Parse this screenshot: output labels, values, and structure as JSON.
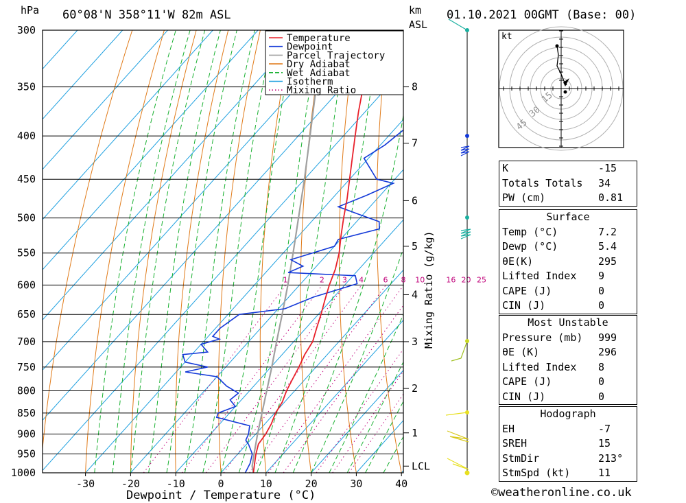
{
  "header": {
    "location": "60°08'N  358°11'W  82m  ASL",
    "datetime": "01.10.2021  00GMT  (Base: 00)",
    "hpa_label": "hPa",
    "km_label": "km",
    "asl_label": "ASL"
  },
  "chart_data": {
    "type": "skew-t",
    "xlabel": "Dewpoint / Temperature (°C)",
    "right_label": "Mixing Ratio (g/kg)",
    "pressure_ticks": [
      300,
      350,
      400,
      450,
      500,
      550,
      600,
      650,
      700,
      750,
      800,
      850,
      900,
      950,
      1000
    ],
    "temp_ticks": [
      -30,
      -20,
      -10,
      0,
      10,
      20,
      30,
      40
    ],
    "xlim": [
      -40,
      40
    ],
    "ylim_hpa": [
      1000,
      300
    ],
    "height_ticks": [
      {
        "label": "8",
        "p": 350
      },
      {
        "label": "7",
        "p": 408
      },
      {
        "label": "6",
        "p": 477
      },
      {
        "label": "5",
        "p": 540
      },
      {
        "label": "4",
        "p": 616
      },
      {
        "label": "3",
        "p": 700
      },
      {
        "label": "2",
        "p": 795
      },
      {
        "label": "1",
        "p": 897
      },
      {
        "label": "LCL",
        "p": 982
      }
    ],
    "mixing_ratio_labels": [
      "1",
      "2",
      "3",
      "4",
      "6",
      "8",
      "10",
      "16",
      "20",
      "25"
    ],
    "mixing_ratio_values": [
      1,
      2,
      3,
      4,
      6,
      8,
      10,
      16,
      20,
      25
    ],
    "legend": [
      {
        "name": "Temperature",
        "color": "#e8202a",
        "style": "solid"
      },
      {
        "name": "Dewpoint",
        "color": "#1238d8",
        "style": "solid"
      },
      {
        "name": "Parcel Trajectory",
        "color": "#a0a0a0",
        "style": "solid"
      },
      {
        "name": "Dry Adiabat",
        "color": "#e07a18",
        "style": "solid"
      },
      {
        "name": "Wet Adiabat",
        "color": "#18b030",
        "style": "dashed"
      },
      {
        "name": "Isotherm",
        "color": "#1ea0e0",
        "style": "solid"
      },
      {
        "name": "Mixing Ratio",
        "color": "#c0007a",
        "style": "dotted"
      }
    ],
    "series": [
      {
        "name": "Temperature",
        "points": [
          [
            1000,
            7.2
          ],
          [
            975,
            5.6
          ],
          [
            950,
            4.0
          ],
          [
            925,
            2.6
          ],
          [
            900,
            2.2
          ],
          [
            875,
            1.4
          ],
          [
            850,
            0.2
          ],
          [
            825,
            -0.5
          ],
          [
            800,
            -1.8
          ],
          [
            775,
            -2.8
          ],
          [
            750,
            -3.8
          ],
          [
            725,
            -5.0
          ],
          [
            700,
            -5.8
          ],
          [
            675,
            -7.6
          ],
          [
            650,
            -9.4
          ],
          [
            625,
            -11.4
          ],
          [
            600,
            -13.4
          ],
          [
            575,
            -15.2
          ],
          [
            550,
            -17.6
          ],
          [
            525,
            -20.6
          ],
          [
            500,
            -23.6
          ],
          [
            475,
            -26.6
          ],
          [
            450,
            -30.0
          ],
          [
            425,
            -33.6
          ],
          [
            400,
            -37.4
          ],
          [
            375,
            -41.4
          ],
          [
            350,
            -45.4
          ],
          [
            325,
            -49.6
          ],
          [
            300,
            -54.0
          ]
        ]
      },
      {
        "name": "Dewpoint",
        "points": [
          [
            1000,
            5.4
          ],
          [
            975,
            4.6
          ],
          [
            950,
            3.2
          ],
          [
            925,
            0.4
          ],
          [
            915,
            -1.0
          ],
          [
            900,
            -1.6
          ],
          [
            880,
            -3.0
          ],
          [
            860,
            -12.0
          ],
          [
            850,
            -12.5
          ],
          [
            835,
            -10.0
          ],
          [
            820,
            -12.5
          ],
          [
            805,
            -12.0
          ],
          [
            790,
            -16.0
          ],
          [
            770,
            -20.0
          ],
          [
            760,
            -28.0
          ],
          [
            750,
            -24.0
          ],
          [
            740,
            -30.0
          ],
          [
            725,
            -32.0
          ],
          [
            720,
            -27.0
          ],
          [
            705,
            -30.0
          ],
          [
            695,
            -27.0
          ],
          [
            690,
            -29.0
          ],
          [
            675,
            -29.0
          ],
          [
            650,
            -27.5
          ],
          [
            640,
            -18.5
          ],
          [
            620,
            -14.5
          ],
          [
            598,
            -7.5
          ],
          [
            585,
            -9.5
          ],
          [
            580,
            -25.0
          ],
          [
            570,
            -23.0
          ],
          [
            560,
            -27.0
          ],
          [
            540,
            -20.0
          ],
          [
            530,
            -20.5
          ],
          [
            515,
            -13.5
          ],
          [
            505,
            -15.0
          ],
          [
            495,
            -21.0
          ],
          [
            485,
            -27.0
          ],
          [
            470,
            -23.0
          ],
          [
            455,
            -19.5
          ],
          [
            450,
            -24.0
          ],
          [
            425,
            -31.0
          ],
          [
            410,
            -29.0
          ],
          [
            395,
            -28.0
          ],
          [
            385,
            -27.0
          ],
          [
            370,
            -31.0
          ],
          [
            355,
            -33.0
          ],
          [
            345,
            -34.0
          ],
          [
            330,
            -40.0
          ],
          [
            320,
            -40.0
          ],
          [
            310,
            -40.0
          ],
          [
            305,
            -39.0
          ],
          [
            300,
            -39.0
          ]
        ]
      },
      {
        "name": "Parcel Trajectory",
        "points": [
          [
            1000,
            7.2
          ],
          [
            982,
            5.6
          ],
          [
            950,
            3.6
          ],
          [
            900,
            0.4
          ],
          [
            850,
            -2.8
          ],
          [
            800,
            -6.2
          ],
          [
            750,
            -9.8
          ],
          [
            700,
            -13.8
          ],
          [
            650,
            -18.0
          ],
          [
            600,
            -22.6
          ],
          [
            550,
            -27.8
          ],
          [
            500,
            -33.6
          ],
          [
            450,
            -40.0
          ],
          [
            400,
            -47.4
          ],
          [
            350,
            -55.8
          ],
          [
            300,
            -65.8
          ]
        ]
      }
    ]
  },
  "hodograph": {
    "unit_label": "kt",
    "ring_labels": [
      "15",
      "30",
      "45"
    ]
  },
  "indices": {
    "general": [
      {
        "label": "K",
        "value": "-15"
      },
      {
        "label": "Totals Totals",
        "value": "34"
      },
      {
        "label": "PW (cm)",
        "value": "0.81"
      }
    ],
    "surface": {
      "title": "Surface",
      "rows": [
        {
          "label": "Temp (°C)",
          "value": "7.2"
        },
        {
          "label": "Dewp (°C)",
          "value": "5.4"
        },
        {
          "label": "θE(K)",
          "value": "295"
        },
        {
          "label": "Lifted Index",
          "value": "9"
        },
        {
          "label": "CAPE (J)",
          "value": "0"
        },
        {
          "label": "CIN (J)",
          "value": "0"
        }
      ]
    },
    "most_unstable": {
      "title": "Most Unstable",
      "rows": [
        {
          "label": "Pressure (mb)",
          "value": "999"
        },
        {
          "label": "θE (K)",
          "value": "296"
        },
        {
          "label": "Lifted Index",
          "value": "8"
        },
        {
          "label": "CAPE (J)",
          "value": "0"
        },
        {
          "label": "CIN (J)",
          "value": "0"
        }
      ]
    },
    "hodograph_box": {
      "title": "Hodograph",
      "rows": [
        {
          "label": "EH",
          "value": "-7"
        },
        {
          "label": "SREH",
          "value": "15"
        },
        {
          "label": "StmDir",
          "value": "213°"
        },
        {
          "label": "StmSpd (kt)",
          "value": "11"
        }
      ]
    }
  },
  "footer": {
    "copyright_symbol": "©",
    "site": "weatheronline.co.uk"
  }
}
